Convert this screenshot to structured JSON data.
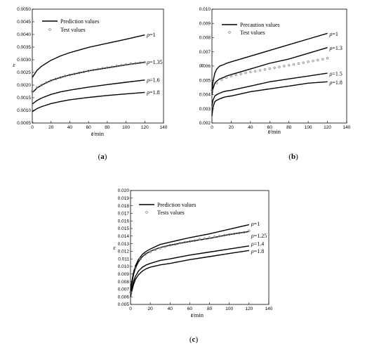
{
  "chart_data": [
    {
      "type": "line",
      "caption": "(a)",
      "ylabel": "ε",
      "xlabel_italic": "t",
      "xlabel_unit": "/min",
      "xlim": [
        0,
        140
      ],
      "ylim": [
        0.0005,
        0.005
      ],
      "xticks": [
        "0",
        "20",
        "40",
        "60",
        "80",
        "100",
        "120",
        "140"
      ],
      "yticks": [
        "0.0005",
        "0.0010",
        "0.0015",
        "0.0020",
        "0.0025",
        "0.0030",
        "0.0035",
        "0.0040",
        "0.0045",
        "0.0050"
      ],
      "legend": {
        "line_label": "Prediction values",
        "marker_label": "Test values",
        "placement": "top-left"
      },
      "series": [
        {
          "name": "ρ=1",
          "x": [
            0,
            5,
            10,
            20,
            30,
            40,
            60,
            80,
            100,
            120
          ],
          "y": [
            0.0023,
            0.00258,
            0.00275,
            0.00298,
            0.00315,
            0.00328,
            0.00349,
            0.00365,
            0.00381,
            0.00398
          ]
        },
        {
          "name": "ρ=1.35",
          "x": [
            0,
            5,
            10,
            20,
            30,
            40,
            60,
            80,
            100,
            120
          ],
          "y": [
            0.0017,
            0.00188,
            0.002,
            0.00218,
            0.0023,
            0.0024,
            0.00256,
            0.00268,
            0.0028,
            0.0029
          ]
        },
        {
          "name": "ρ=1.6",
          "x": [
            0,
            5,
            10,
            20,
            30,
            40,
            60,
            80,
            100,
            120
          ],
          "y": [
            0.00125,
            0.00139,
            0.00149,
            0.00163,
            0.00173,
            0.0018,
            0.00192,
            0.00202,
            0.00211,
            0.0022
          ]
        },
        {
          "name": "ρ=1.8",
          "x": [
            0,
            5,
            10,
            20,
            30,
            40,
            60,
            80,
            100,
            120
          ],
          "y": [
            0.00095,
            0.00107,
            0.00115,
            0.00127,
            0.00135,
            0.00142,
            0.00151,
            0.00159,
            0.00165,
            0.00171
          ]
        }
      ],
      "test_series": {
        "x": [
          0,
          5,
          10,
          15,
          20,
          25,
          30,
          35,
          40,
          45,
          50,
          55,
          60,
          65,
          70,
          75,
          80,
          85,
          90,
          95,
          100,
          105,
          110,
          115,
          120
        ],
        "y": [
          0.00175,
          0.0019,
          0.002,
          0.0021,
          0.00218,
          0.00224,
          0.0023,
          0.00236,
          0.0024,
          0.00244,
          0.00248,
          0.00252,
          0.00256,
          0.0026,
          0.00263,
          0.00266,
          0.00269,
          0.00272,
          0.00275,
          0.00278,
          0.00281,
          0.00284,
          0.00286,
          0.00288,
          0.0029
        ]
      }
    },
    {
      "type": "line",
      "caption": "(b)",
      "ylabel": "ε",
      "xlabel_italic": "t",
      "xlabel_unit": "/min",
      "xlim": [
        0,
        140
      ],
      "ylim": [
        0.002,
        0.01
      ],
      "xticks": [
        "0",
        "20",
        "40",
        "60",
        "80",
        "100",
        "120",
        "140"
      ],
      "yticks": [
        "0.002",
        "0.003",
        "0.004",
        "0.005",
        "0.006",
        "0.007",
        "0.008",
        "0.009",
        "0.010"
      ],
      "legend": {
        "line_label": "Precaution values",
        "marker_label": "Test values",
        "placement": "top-left"
      },
      "series": [
        {
          "name": "ρ=1",
          "x": [
            0,
            1,
            3,
            5,
            8,
            12,
            15,
            20,
            40,
            60,
            80,
            100,
            120
          ],
          "y": [
            0.0042,
            0.0049,
            0.0055,
            0.0058,
            0.006,
            0.0061,
            0.0062,
            0.0063,
            0.0067,
            0.0071,
            0.0075,
            0.0079,
            0.0083
          ]
        },
        {
          "name": "ρ=1.3",
          "x": [
            0,
            1,
            3,
            5,
            8,
            12,
            15,
            20,
            40,
            60,
            80,
            100,
            120
          ],
          "y": [
            0.004,
            0.0044,
            0.0048,
            0.00495,
            0.0051,
            0.0052,
            0.0053,
            0.0054,
            0.0058,
            0.0062,
            0.0065,
            0.0069,
            0.0073
          ]
        },
        {
          "name": "ρ=1.5",
          "x": [
            0,
            1,
            3,
            5,
            8,
            12,
            15,
            20,
            40,
            60,
            80,
            100,
            120
          ],
          "y": [
            0.0032,
            0.0036,
            0.0039,
            0.004,
            0.0041,
            0.0042,
            0.00425,
            0.0043,
            0.0046,
            0.0049,
            0.0051,
            0.0053,
            0.0055
          ]
        },
        {
          "name": "ρ=1.8",
          "x": [
            0,
            1,
            3,
            5,
            8,
            12,
            15,
            20,
            40,
            60,
            80,
            100,
            120
          ],
          "y": [
            0.0025,
            0.0031,
            0.0035,
            0.0036,
            0.0037,
            0.0038,
            0.00385,
            0.0039,
            0.0042,
            0.0044,
            0.0046,
            0.0048,
            0.0049
          ]
        }
      ],
      "test_series": {
        "x": [
          0,
          5,
          10,
          15,
          20,
          25,
          30,
          35,
          40,
          45,
          50,
          55,
          60,
          65,
          70,
          75,
          80,
          85,
          90,
          95,
          100,
          105,
          110,
          115,
          120
        ],
        "y": [
          0.0043,
          0.0048,
          0.00505,
          0.0052,
          0.0053,
          0.00538,
          0.00545,
          0.00552,
          0.00558,
          0.00564,
          0.0057,
          0.00576,
          0.00582,
          0.00588,
          0.00594,
          0.006,
          0.00606,
          0.00612,
          0.00618,
          0.00624,
          0.0063,
          0.00636,
          0.00642,
          0.00648,
          0.00655
        ]
      }
    },
    {
      "type": "line",
      "caption": "(c)",
      "ylabel": "ε",
      "xlabel_italic": "t",
      "xlabel_unit": "/min",
      "xlim": [
        0,
        140
      ],
      "ylim": [
        0.005,
        0.02
      ],
      "xticks": [
        "0",
        "20",
        "40",
        "60",
        "80",
        "100",
        "120",
        "140"
      ],
      "yticks": [
        "0.005",
        "0.006",
        "0.007",
        "0.008",
        "0.009",
        "0.010",
        "0.011",
        "0.012",
        "0.013",
        "0.014",
        "0.015",
        "0.016",
        "0.017",
        "0.018",
        "0.019",
        "0.020"
      ],
      "legend": {
        "line_label": "Prediction values",
        "marker_label": "Tests values",
        "placement": "top-left"
      },
      "series": [
        {
          "name": "ρ=1",
          "x": [
            0,
            1,
            3,
            5,
            8,
            12,
            16,
            20,
            30,
            40,
            60,
            80,
            100,
            120
          ],
          "y": [
            0.0068,
            0.0078,
            0.0092,
            0.0101,
            0.0109,
            0.0116,
            0.012,
            0.0123,
            0.0129,
            0.0132,
            0.0138,
            0.0143,
            0.0149,
            0.0155
          ]
        },
        {
          "name": "ρ=1.25",
          "x": [
            0,
            1,
            3,
            5,
            8,
            12,
            16,
            20,
            30,
            40,
            60,
            80,
            100,
            120
          ],
          "y": [
            0.0066,
            0.0075,
            0.0089,
            0.0098,
            0.0106,
            0.0113,
            0.0117,
            0.012,
            0.0125,
            0.0128,
            0.0133,
            0.0137,
            0.0142,
            0.0146
          ]
        },
        {
          "name": "ρ=1.4",
          "x": [
            0,
            1,
            3,
            5,
            8,
            12,
            16,
            20,
            30,
            40,
            60,
            80,
            100,
            120
          ],
          "y": [
            0.0062,
            0.0069,
            0.008,
            0.0087,
            0.0094,
            0.0099,
            0.0102,
            0.0104,
            0.0108,
            0.011,
            0.0115,
            0.0119,
            0.0123,
            0.0127
          ]
        },
        {
          "name": "ρ=1.8",
          "x": [
            0,
            1,
            3,
            5,
            8,
            12,
            16,
            20,
            30,
            40,
            60,
            80,
            100,
            120
          ],
          "y": [
            0.006,
            0.0066,
            0.0076,
            0.0083,
            0.0089,
            0.0094,
            0.0097,
            0.0099,
            0.0102,
            0.0104,
            0.0109,
            0.0113,
            0.0117,
            0.0121
          ]
        }
      ],
      "test_series": {
        "x": [
          0,
          5,
          10,
          15,
          20,
          25,
          30,
          35,
          40,
          45,
          50,
          55,
          60,
          65,
          70,
          75,
          80,
          85,
          90,
          95,
          100,
          105,
          110,
          115,
          120
        ],
        "y": [
          0.0066,
          0.0098,
          0.011,
          0.0116,
          0.0119,
          0.0122,
          0.0124,
          0.0126,
          0.0128,
          0.0129,
          0.0131,
          0.0132,
          0.0133,
          0.0134,
          0.0136,
          0.0137,
          0.0138,
          0.0139,
          0.014,
          0.0141,
          0.0142,
          0.0143,
          0.0144,
          0.0145,
          0.0147
        ]
      }
    }
  ]
}
